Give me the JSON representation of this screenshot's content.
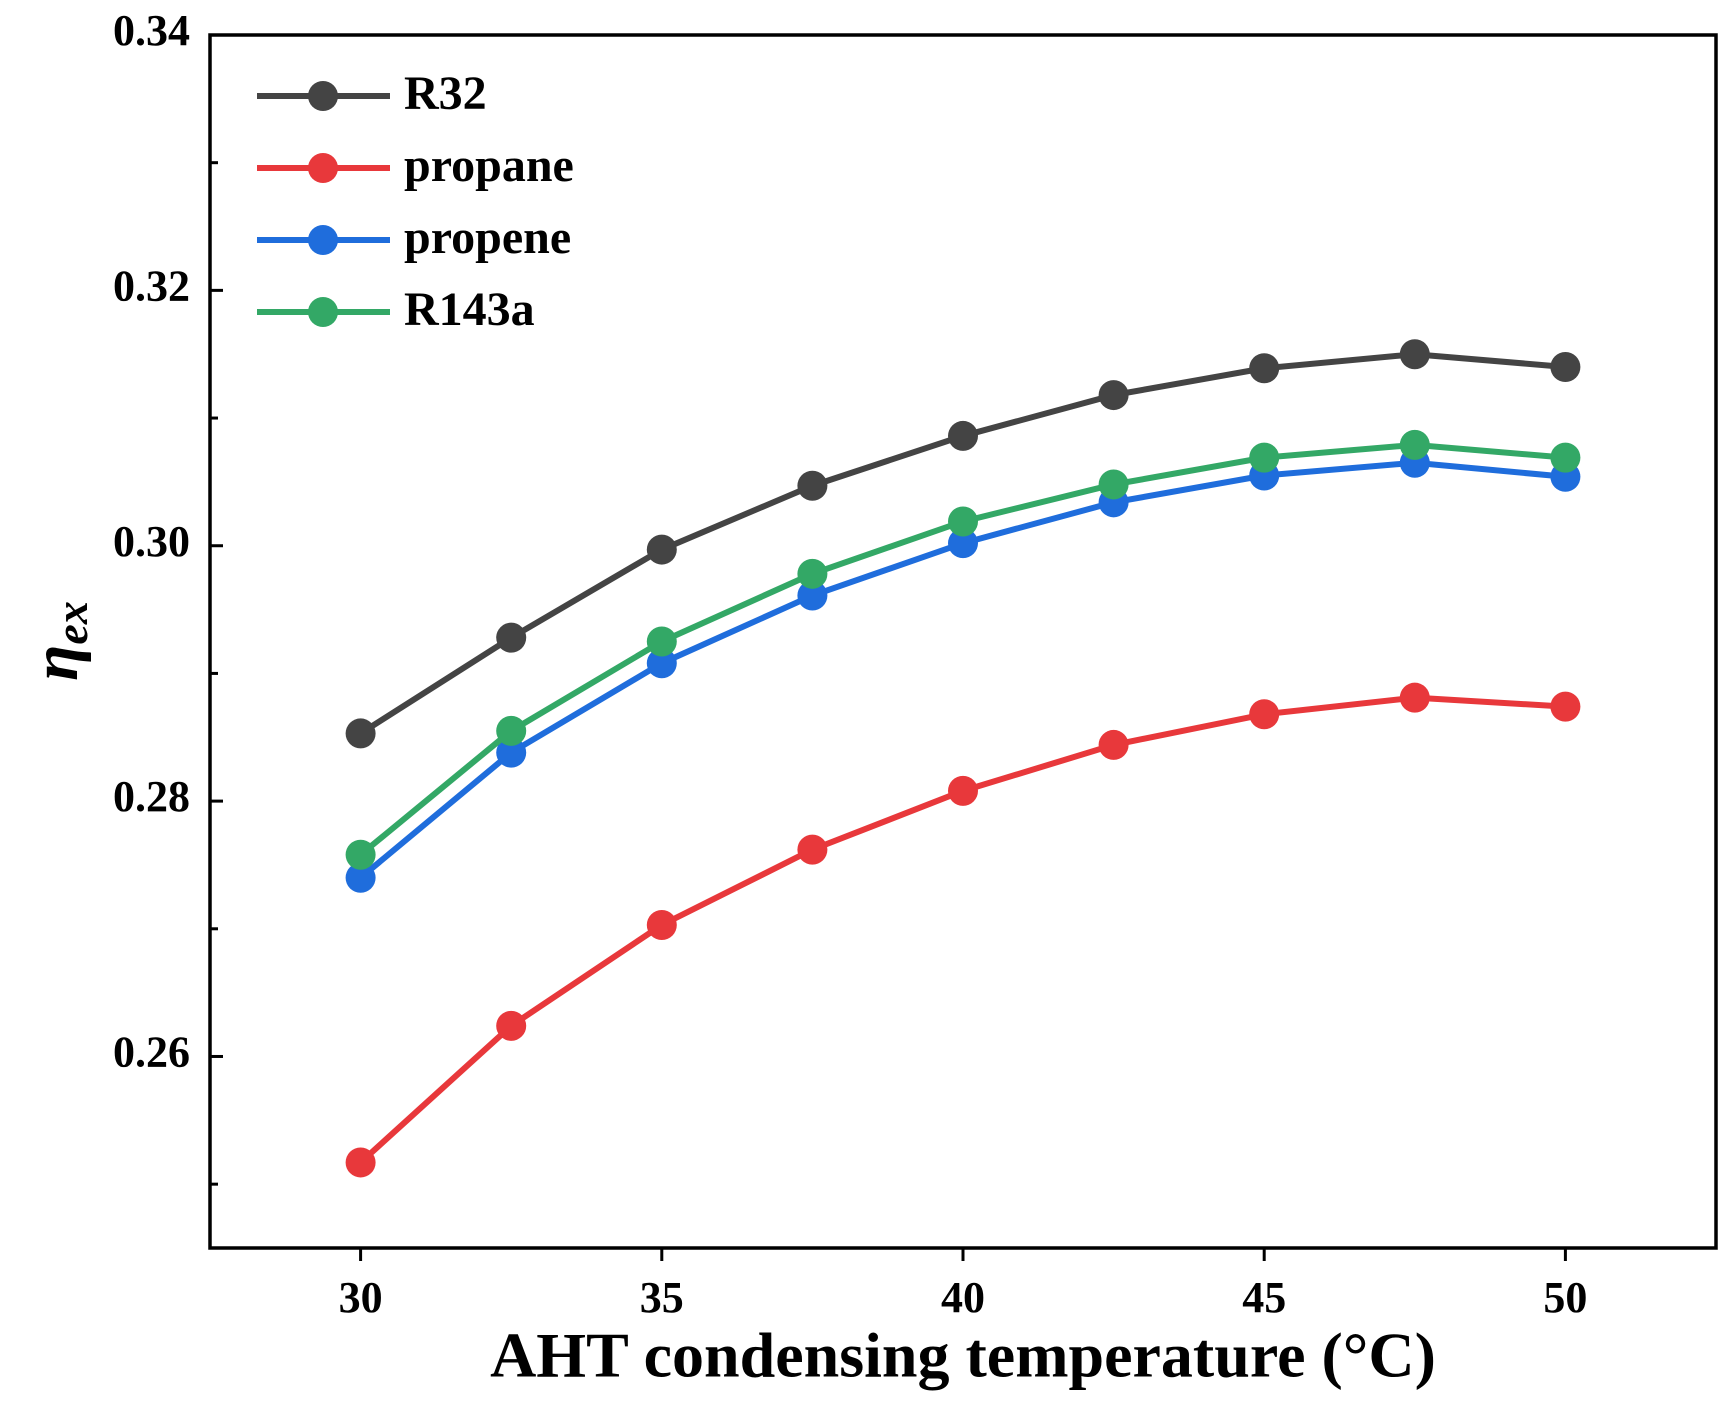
{
  "chart_data": {
    "type": "line",
    "xlabel": "AHT condensing temperature (°C)",
    "ylabel": "η",
    "ylabel_subscript": "ex",
    "x": [
      30,
      32.5,
      35,
      37.5,
      40,
      42.5,
      45,
      47.5,
      50
    ],
    "series": [
      {
        "name": "R32",
        "color": "#444444",
        "values": [
          0.2853,
          0.2928,
          0.2997,
          0.3047,
          0.3086,
          0.3118,
          0.3139,
          0.315,
          0.314
        ]
      },
      {
        "name": "propane",
        "color": "#e8383b",
        "values": [
          0.2517,
          0.2624,
          0.2703,
          0.2762,
          0.2808,
          0.2844,
          0.2868,
          0.2881,
          0.2874
        ]
      },
      {
        "name": "propene",
        "color": "#1f6ddc",
        "values": [
          0.274,
          0.2838,
          0.2908,
          0.2961,
          0.3002,
          0.3034,
          0.3055,
          0.3065,
          0.3054
        ]
      },
      {
        "name": "R143a",
        "color": "#33a866",
        "values": [
          0.2758,
          0.2855,
          0.2925,
          0.2978,
          0.3019,
          0.3048,
          0.3069,
          0.3079,
          0.3069
        ]
      }
    ],
    "xlim": [
      27.5,
      52.5
    ],
    "xticks": [
      30,
      35,
      40,
      45,
      50
    ],
    "ylim": [
      0.245,
      0.34
    ],
    "yticks": [
      0.26,
      0.28,
      {
        "value": 0.3,
        "label": "0.30"
      },
      0.32,
      0.34
    ],
    "yminor_ticks": [
      0.25,
      0.27,
      0.29,
      0.31,
      0.33
    ],
    "legend": "upper left"
  }
}
